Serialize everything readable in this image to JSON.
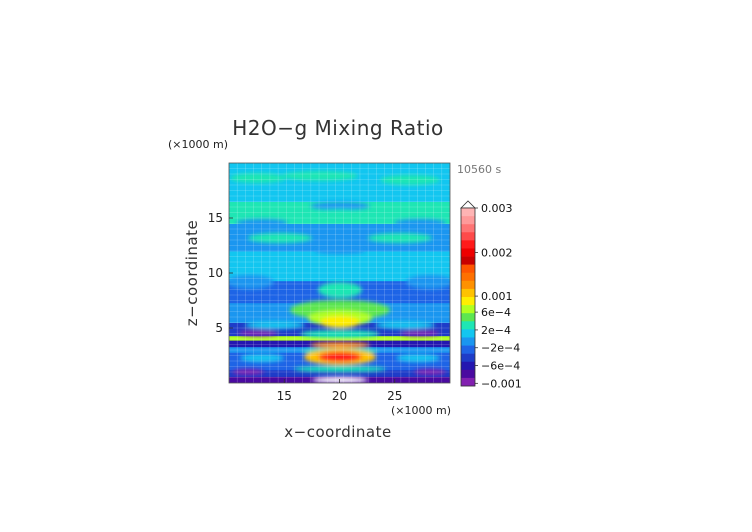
{
  "chart_data": {
    "type": "heatmap",
    "title": "H2O−g Mixing Ratio",
    "time_label": "10560 s",
    "xlabel": "x−coordinate",
    "ylabel": "z−coordinate",
    "x_unit": "(×1000 m)",
    "y_unit": "(×1000 m)",
    "xlim": [
      10,
      30
    ],
    "ylim": [
      0,
      20
    ],
    "x_ticks": [
      15,
      20,
      25
    ],
    "y_ticks": [
      5,
      10,
      15
    ],
    "grid": true,
    "colorbar": {
      "tick_labels": [
        "0.003",
        "0.002",
        "0.001",
        "6e−4",
        "2e−4",
        "−2e−4",
        "−6e−4",
        "−0.001"
      ],
      "levels_top_to_bottom": [
        "#ffb4b4",
        "#ff9a9a",
        "#ff7474",
        "#ff4a4a",
        "#ff1a1a",
        "#ee0000",
        "#c80000",
        "#ff5500",
        "#ff7000",
        "#ff9100",
        "#ffc200",
        "#ffee00",
        "#b0ff20",
        "#5ce650",
        "#1ee6b4",
        "#12c6f0",
        "#1a96f0",
        "#1e64e6",
        "#1e3cc8",
        "#2416b0",
        "#4a0aa0",
        "#8220b0"
      ]
    },
    "bands": [
      {
        "z": [
          0,
          0.6
        ],
        "base": "#4a0aa0",
        "feature": "#ffffff"
      },
      {
        "z": [
          0.6,
          1.2
        ],
        "base": "#1e3cc8",
        "feature": "#8220b0"
      },
      {
        "z": [
          1.2,
          2.8
        ],
        "base": "#1e64e6",
        "feature": "#ff1a1a"
      },
      {
        "z": [
          2.8,
          3.3
        ],
        "base": "#1e96f0",
        "feature": "#ffee00"
      },
      {
        "z": [
          3.3,
          3.9
        ],
        "base": "#2416b0",
        "feature": "#ff9100"
      },
      {
        "z": [
          3.9,
          4.3
        ],
        "base": "#b0ff20",
        "feature": "#ffee00"
      },
      {
        "z": [
          4.3,
          5.5
        ],
        "base": "#1e3cc8",
        "feature": "#12c6f0"
      },
      {
        "z": [
          5.5,
          7.3
        ],
        "base": "#1a96f0",
        "feature": "#ffee00"
      },
      {
        "z": [
          7.3,
          9.3
        ],
        "base": "#1e64e6",
        "feature": "#5ce650"
      },
      {
        "z": [
          9.3,
          12
        ],
        "base": "#12c6f0",
        "feature": "#1ee6b4"
      },
      {
        "z": [
          12,
          14.5
        ],
        "base": "#1a96f0",
        "feature": "#1ee6b4"
      },
      {
        "z": [
          14.5,
          16.5
        ],
        "base": "#1ee6b4",
        "feature": "#1a96f0"
      },
      {
        "z": [
          16.5,
          18.3
        ],
        "base": "#12c6f0",
        "feature": "#1ee6b4"
      },
      {
        "z": [
          18.3,
          20
        ],
        "base": "#12c6f0",
        "feature": "#5ce650"
      }
    ]
  }
}
